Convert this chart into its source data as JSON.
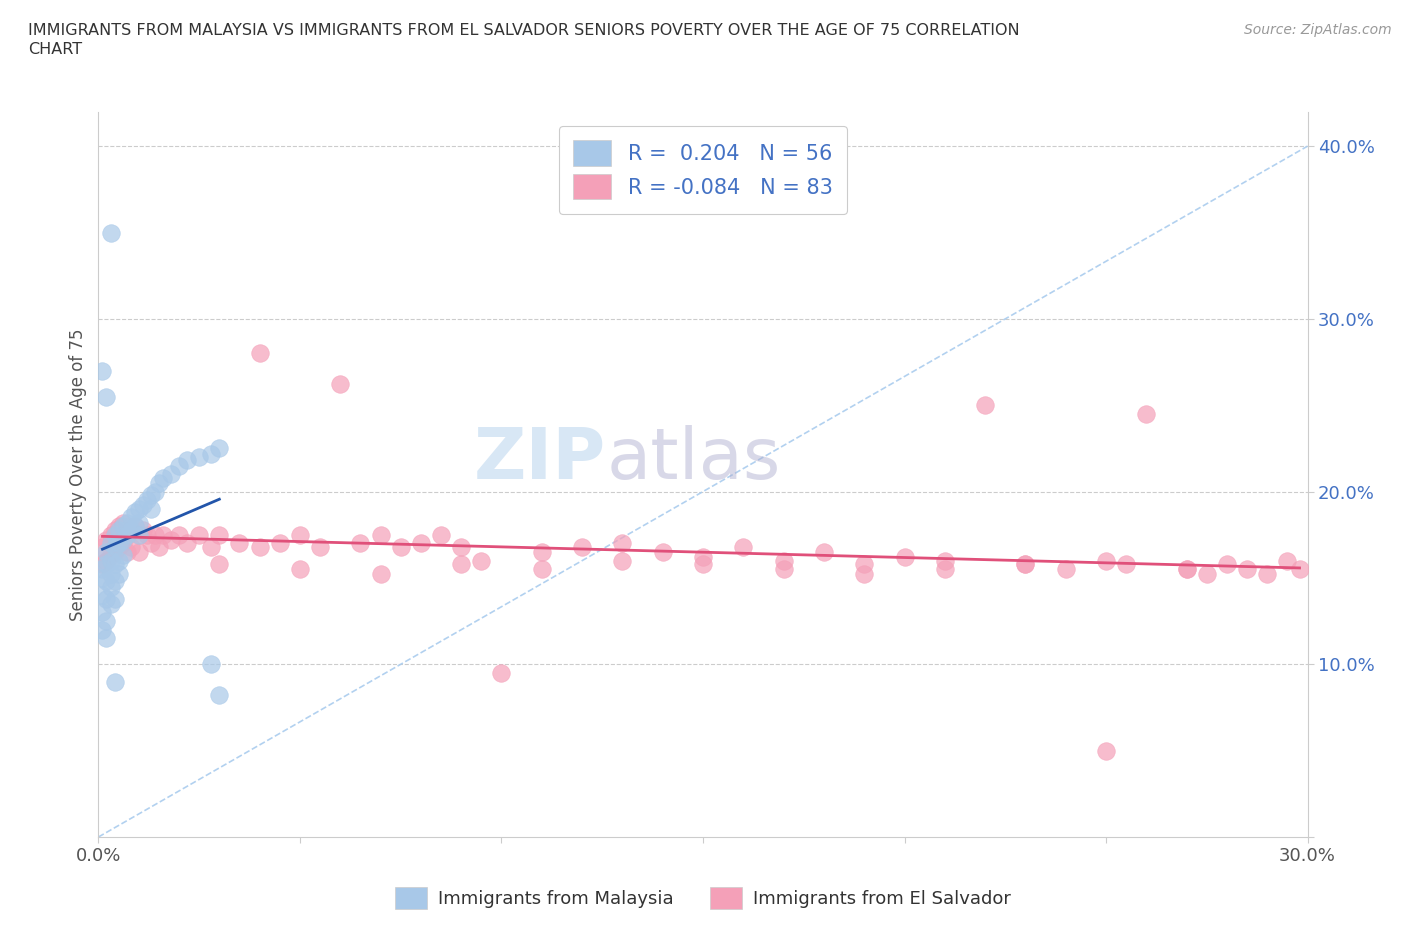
{
  "title_line1": "IMMIGRANTS FROM MALAYSIA VS IMMIGRANTS FROM EL SALVADOR SENIORS POVERTY OVER THE AGE OF 75 CORRELATION",
  "title_line2": "CHART",
  "source_text": "Source: ZipAtlas.com",
  "ylabel": "Seniors Poverty Over the Age of 75",
  "xlim": [
    0.0,
    0.3
  ],
  "ylim": [
    0.0,
    0.42
  ],
  "malaysia_color": "#a8c8e8",
  "malaysia_line_color": "#2255aa",
  "elsalvador_color": "#f4a0b8",
  "elsalvador_line_color": "#e0507a",
  "R_malaysia": 0.204,
  "N_malaysia": 56,
  "R_elsalvador": -0.084,
  "N_elsalvador": 83,
  "watermark_text": "ZIPatlas",
  "legend_label_malaysia": "Immigrants from Malaysia",
  "legend_label_elsalvador": "Immigrants from El Salvador",
  "malaysia_x": [
    0.001,
    0.001,
    0.001,
    0.001,
    0.001,
    0.002,
    0.002,
    0.002,
    0.002,
    0.002,
    0.002,
    0.003,
    0.003,
    0.003,
    0.003,
    0.003,
    0.004,
    0.004,
    0.004,
    0.004,
    0.004,
    0.005,
    0.005,
    0.005,
    0.005,
    0.006,
    0.006,
    0.006,
    0.007,
    0.007,
    0.008,
    0.008,
    0.009,
    0.009,
    0.01,
    0.01,
    0.01,
    0.011,
    0.012,
    0.013,
    0.013,
    0.014,
    0.015,
    0.016,
    0.018,
    0.02,
    0.022,
    0.025,
    0.028,
    0.03,
    0.001,
    0.002,
    0.003,
    0.004,
    0.028,
    0.03
  ],
  "malaysia_y": [
    0.155,
    0.15,
    0.14,
    0.13,
    0.12,
    0.165,
    0.158,
    0.148,
    0.138,
    0.125,
    0.115,
    0.17,
    0.16,
    0.152,
    0.145,
    0.135,
    0.175,
    0.168,
    0.158,
    0.148,
    0.138,
    0.178,
    0.17,
    0.16,
    0.152,
    0.18,
    0.172,
    0.163,
    0.182,
    0.175,
    0.185,
    0.178,
    0.188,
    0.18,
    0.19,
    0.182,
    0.175,
    0.192,
    0.195,
    0.198,
    0.19,
    0.2,
    0.205,
    0.208,
    0.21,
    0.215,
    0.218,
    0.22,
    0.222,
    0.225,
    0.27,
    0.255,
    0.35,
    0.09,
    0.1,
    0.082
  ],
  "elsalvador_x": [
    0.001,
    0.001,
    0.002,
    0.002,
    0.003,
    0.003,
    0.004,
    0.004,
    0.005,
    0.005,
    0.006,
    0.006,
    0.007,
    0.007,
    0.008,
    0.008,
    0.009,
    0.01,
    0.01,
    0.011,
    0.012,
    0.013,
    0.014,
    0.015,
    0.016,
    0.018,
    0.02,
    0.022,
    0.025,
    0.028,
    0.03,
    0.035,
    0.04,
    0.04,
    0.045,
    0.05,
    0.055,
    0.06,
    0.065,
    0.07,
    0.075,
    0.08,
    0.085,
    0.09,
    0.095,
    0.1,
    0.11,
    0.12,
    0.13,
    0.14,
    0.15,
    0.16,
    0.17,
    0.18,
    0.19,
    0.2,
    0.21,
    0.22,
    0.23,
    0.24,
    0.25,
    0.255,
    0.26,
    0.27,
    0.275,
    0.28,
    0.285,
    0.29,
    0.295,
    0.298,
    0.03,
    0.05,
    0.07,
    0.09,
    0.11,
    0.13,
    0.15,
    0.17,
    0.19,
    0.21,
    0.23,
    0.25,
    0.27
  ],
  "elsalvador_y": [
    0.168,
    0.158,
    0.172,
    0.16,
    0.175,
    0.163,
    0.178,
    0.165,
    0.18,
    0.168,
    0.182,
    0.17,
    0.175,
    0.165,
    0.178,
    0.168,
    0.18,
    0.175,
    0.165,
    0.178,
    0.175,
    0.17,
    0.175,
    0.168,
    0.175,
    0.172,
    0.175,
    0.17,
    0.175,
    0.168,
    0.175,
    0.17,
    0.28,
    0.168,
    0.17,
    0.175,
    0.168,
    0.262,
    0.17,
    0.175,
    0.168,
    0.17,
    0.175,
    0.168,
    0.16,
    0.095,
    0.165,
    0.168,
    0.17,
    0.165,
    0.162,
    0.168,
    0.16,
    0.165,
    0.158,
    0.162,
    0.155,
    0.25,
    0.158,
    0.155,
    0.16,
    0.158,
    0.245,
    0.155,
    0.152,
    0.158,
    0.155,
    0.152,
    0.16,
    0.155,
    0.158,
    0.155,
    0.152,
    0.158,
    0.155,
    0.16,
    0.158,
    0.155,
    0.152,
    0.16,
    0.158,
    0.05,
    0.155
  ]
}
